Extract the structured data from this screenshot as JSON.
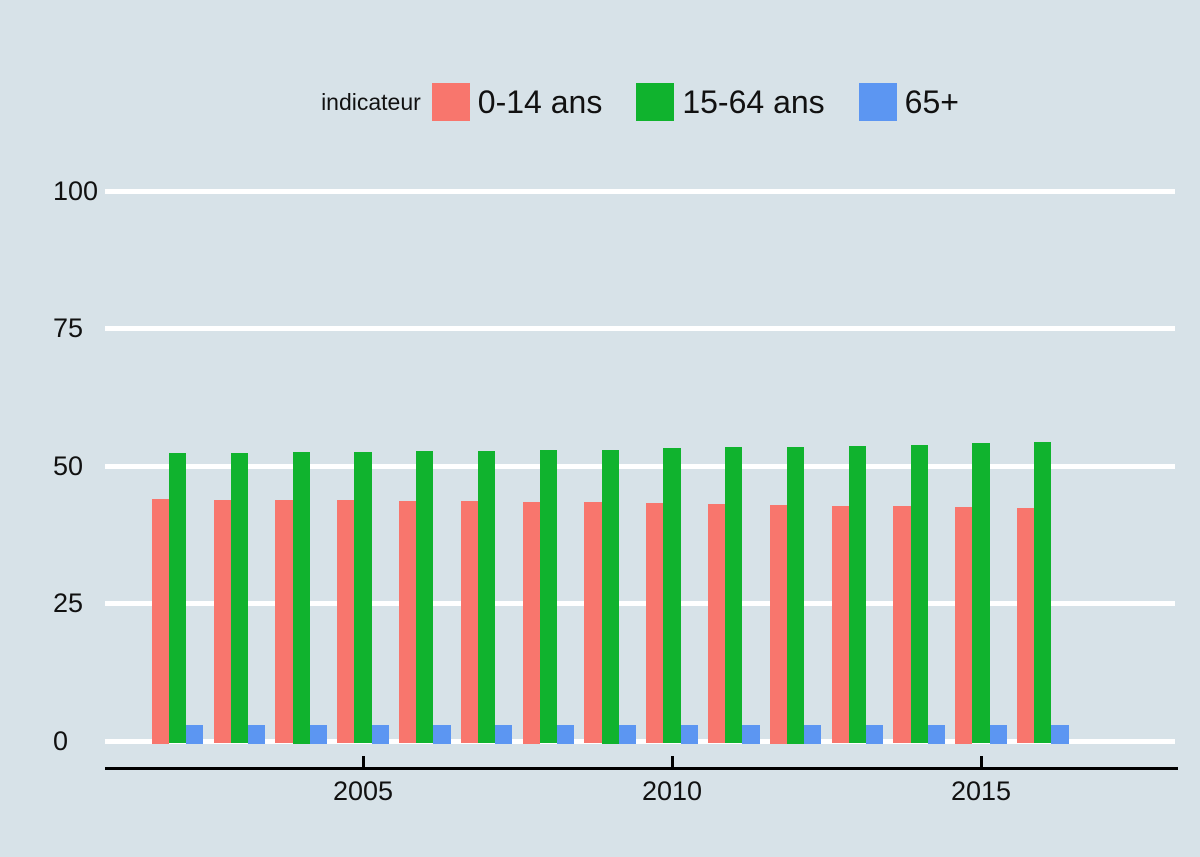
{
  "chart_data": {
    "type": "bar",
    "title": "",
    "legend_title": "indicateur",
    "legend_position": "top-center",
    "categories": [
      2002,
      2003,
      2004,
      2005,
      2006,
      2007,
      2008,
      2009,
      2010,
      2011,
      2012,
      2013,
      2014,
      2015,
      2016
    ],
    "series": [
      {
        "name": "0-14 ans",
        "color": "#F8766D",
        "values": [
          44.0,
          43.9,
          43.9,
          43.8,
          43.7,
          43.6,
          43.5,
          43.4,
          43.3,
          43.1,
          43.0,
          42.8,
          42.7,
          42.5,
          42.3
        ]
      },
      {
        "name": "15-64 ans",
        "color": "#10B32E",
        "values": [
          52.3,
          52.4,
          52.5,
          52.6,
          52.7,
          52.8,
          52.9,
          53.0,
          53.2,
          53.4,
          53.5,
          53.7,
          53.9,
          54.1,
          54.3
        ]
      },
      {
        "name": "65+",
        "color": "#5C96F2",
        "values": [
          3.0,
          3.0,
          3.0,
          3.0,
          3.0,
          3.0,
          3.0,
          3.0,
          3.0,
          3.0,
          3.0,
          3.0,
          3.0,
          3.0,
          3.0
        ]
      }
    ],
    "xlabel": "",
    "ylabel": "",
    "ylim": [
      0,
      100
    ],
    "yticks": [
      0,
      25,
      50,
      75,
      100
    ],
    "xticks": [
      2005,
      2010,
      2015
    ],
    "grid": "horizontal",
    "colors": {
      "background": "#D7E2E8",
      "gridline": "#FFFFFF",
      "axis": "#000000",
      "text": "#111111"
    }
  }
}
